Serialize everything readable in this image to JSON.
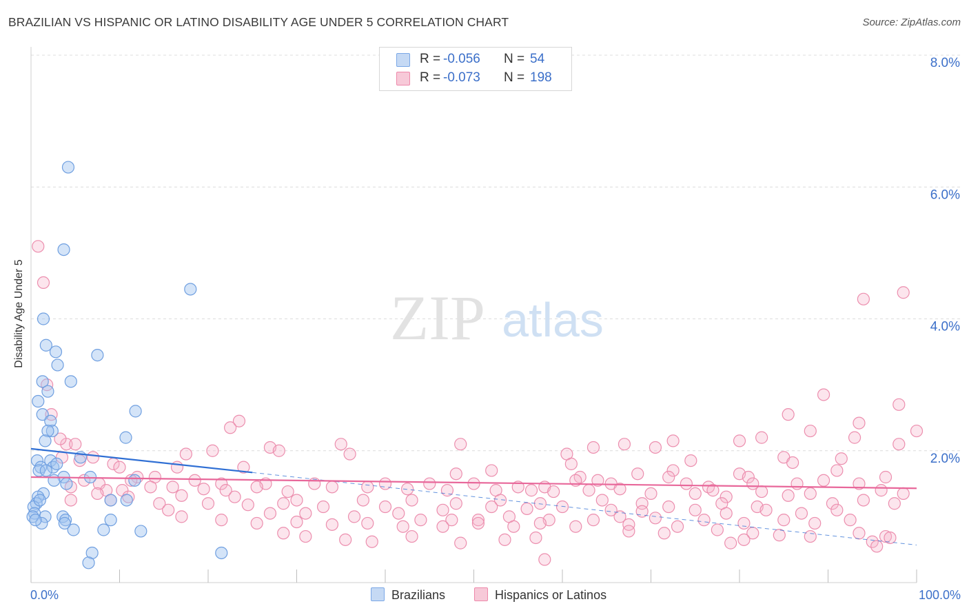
{
  "title": "BRAZILIAN VS HISPANIC OR LATINO DISABILITY AGE UNDER 5 CORRELATION CHART",
  "source": "Source: ZipAtlas.com",
  "watermark": {
    "zip": "ZIP",
    "atlas": "atlas"
  },
  "colors": {
    "blue": "#7aa7e6",
    "blue_fill": "#c5d9f4",
    "pink": "#ee88aa",
    "pink_fill": "#f7c9d8",
    "blue_line": "#2f6fd4",
    "pink_line": "#e8679a",
    "value_text": "#3b6fc9"
  },
  "legend": {
    "rows": [
      {
        "r_label": "R =",
        "r_value": "-0.056",
        "n_label": "N =",
        "n_value": "54"
      },
      {
        "r_label": "R =",
        "r_value": "-0.073",
        "n_label": "N =",
        "n_value": "198"
      }
    ]
  },
  "bottom_legend": {
    "series1": "Brazilians",
    "series2": "Hispanics or Latinos"
  },
  "chart_data": {
    "type": "scatter",
    "title": "BRAZILIAN VS HISPANIC OR LATINO DISABILITY AGE UNDER 5 CORRELATION CHART",
    "xlabel": "",
    "ylabel": "Disability Age Under 5",
    "xlim": [
      0,
      100
    ],
    "ylim": [
      0,
      8.0
    ],
    "x_tick_labels": [
      "0.0%",
      "100.0%"
    ],
    "y_ticks": [
      2.0,
      4.0,
      6.0,
      8.0
    ],
    "y_tick_labels": [
      "2.0%",
      "4.0%",
      "6.0%",
      "8.0%"
    ],
    "grid": true,
    "legend_position": "top-center",
    "series": [
      {
        "name": "Brazilians",
        "r": -0.056,
        "n": 54,
        "trend": {
          "x": [
            0,
            25,
            100
          ],
          "y": [
            2.03,
            1.67,
            0.57
          ]
        },
        "points": [
          [
            4.2,
            6.3
          ],
          [
            3.7,
            5.05
          ],
          [
            18,
            4.45
          ],
          [
            1.4,
            4.0
          ],
          [
            1.7,
            3.6
          ],
          [
            2.8,
            3.5
          ],
          [
            7.5,
            3.45
          ],
          [
            3.0,
            3.3
          ],
          [
            4.5,
            3.05
          ],
          [
            1.3,
            3.05
          ],
          [
            1.9,
            2.9
          ],
          [
            0.8,
            2.75
          ],
          [
            11.8,
            2.6
          ],
          [
            1.3,
            2.55
          ],
          [
            2.2,
            2.45
          ],
          [
            2.4,
            2.3
          ],
          [
            1.9,
            2.3
          ],
          [
            10.7,
            2.2
          ],
          [
            1.6,
            2.15
          ],
          [
            5.6,
            1.9
          ],
          [
            0.7,
            1.85
          ],
          [
            2.2,
            1.85
          ],
          [
            1.1,
            1.75
          ],
          [
            2.5,
            1.75
          ],
          [
            2.9,
            1.8
          ],
          [
            0.9,
            1.7
          ],
          [
            1.7,
            1.7
          ],
          [
            3.7,
            1.6
          ],
          [
            2.6,
            1.55
          ],
          [
            6.7,
            1.6
          ],
          [
            11.7,
            1.55
          ],
          [
            4.0,
            1.5
          ],
          [
            1.4,
            1.35
          ],
          [
            0.8,
            1.3
          ],
          [
            9.0,
            1.25
          ],
          [
            10.8,
            1.25
          ],
          [
            0.6,
            1.2
          ],
          [
            0.3,
            1.15
          ],
          [
            0.4,
            1.05
          ],
          [
            0.2,
            1.0
          ],
          [
            1.6,
            1.0
          ],
          [
            3.6,
            1.0
          ],
          [
            3.9,
            0.95
          ],
          [
            9.0,
            0.95
          ],
          [
            1.2,
            0.9
          ],
          [
            3.8,
            0.9
          ],
          [
            4.8,
            0.8
          ],
          [
            8.2,
            0.8
          ],
          [
            12.4,
            0.78
          ],
          [
            6.9,
            0.45
          ],
          [
            21.5,
            0.45
          ],
          [
            6.5,
            0.3
          ],
          [
            1.0,
            1.25
          ],
          [
            0.5,
            0.95
          ]
        ]
      },
      {
        "name": "Hispanics or Latinos",
        "r": -0.073,
        "n": 198,
        "trend": {
          "x": [
            0,
            100
          ],
          "y": [
            1.6,
            1.43
          ]
        },
        "points": [
          [
            0.8,
            5.1
          ],
          [
            1.4,
            4.55
          ],
          [
            94,
            4.3
          ],
          [
            98.5,
            4.4
          ],
          [
            1.8,
            3.0
          ],
          [
            89.5,
            2.85
          ],
          [
            98,
            2.7
          ],
          [
            2.3,
            2.55
          ],
          [
            23.5,
            2.45
          ],
          [
            85.5,
            2.55
          ],
          [
            93.5,
            2.42
          ],
          [
            100,
            2.3
          ],
          [
            22.5,
            2.35
          ],
          [
            4.0,
            2.1
          ],
          [
            5.0,
            2.1
          ],
          [
            3.3,
            2.18
          ],
          [
            27,
            2.05
          ],
          [
            35,
            2.1
          ],
          [
            48.5,
            2.1
          ],
          [
            80,
            2.15
          ],
          [
            82.5,
            2.2
          ],
          [
            88,
            2.3
          ],
          [
            93,
            2.2
          ],
          [
            98,
            2.1
          ],
          [
            67,
            2.1
          ],
          [
            70.5,
            2.05
          ],
          [
            72.5,
            2.15
          ],
          [
            63.5,
            2.05
          ],
          [
            28,
            2.0
          ],
          [
            20.5,
            2.0
          ],
          [
            36,
            1.95
          ],
          [
            60.5,
            1.95
          ],
          [
            17.5,
            1.95
          ],
          [
            7.0,
            1.9
          ],
          [
            85,
            1.9
          ],
          [
            3.5,
            1.9
          ],
          [
            5.5,
            1.85
          ],
          [
            91.5,
            1.88
          ],
          [
            86,
            1.82
          ],
          [
            9.3,
            1.8
          ],
          [
            61,
            1.8
          ],
          [
            74.5,
            1.85
          ],
          [
            10,
            1.75
          ],
          [
            16.5,
            1.75
          ],
          [
            24,
            1.75
          ],
          [
            52,
            1.7
          ],
          [
            72.5,
            1.7
          ],
          [
            80,
            1.65
          ],
          [
            91,
            1.7
          ],
          [
            72,
            1.6
          ],
          [
            81,
            1.6
          ],
          [
            62,
            1.6
          ],
          [
            64,
            1.55
          ],
          [
            68.5,
            1.65
          ],
          [
            48,
            1.65
          ],
          [
            12,
            1.6
          ],
          [
            14,
            1.6
          ],
          [
            6.0,
            1.55
          ],
          [
            11.3,
            1.55
          ],
          [
            7.7,
            1.5
          ],
          [
            18.5,
            1.55
          ],
          [
            21.5,
            1.5
          ],
          [
            26.5,
            1.5
          ],
          [
            32,
            1.5
          ],
          [
            40,
            1.5
          ],
          [
            45,
            1.5
          ],
          [
            50,
            1.5
          ],
          [
            55,
            1.45
          ],
          [
            58,
            1.45
          ],
          [
            61.5,
            1.55
          ],
          [
            65.5,
            1.5
          ],
          [
            74,
            1.5
          ],
          [
            76.5,
            1.45
          ],
          [
            81.5,
            1.5
          ],
          [
            86.5,
            1.5
          ],
          [
            89.5,
            1.55
          ],
          [
            93.5,
            1.5
          ],
          [
            96.5,
            1.6
          ],
          [
            96,
            1.4
          ],
          [
            98.5,
            1.35
          ],
          [
            4.5,
            1.45
          ],
          [
            8.5,
            1.4
          ],
          [
            10.3,
            1.4
          ],
          [
            13.5,
            1.45
          ],
          [
            16,
            1.45
          ],
          [
            19.5,
            1.42
          ],
          [
            22,
            1.4
          ],
          [
            25.5,
            1.45
          ],
          [
            29,
            1.38
          ],
          [
            34,
            1.45
          ],
          [
            38,
            1.45
          ],
          [
            42.5,
            1.42
          ],
          [
            47,
            1.4
          ],
          [
            52.5,
            1.4
          ],
          [
            56.5,
            1.4
          ],
          [
            59,
            1.38
          ],
          [
            63,
            1.4
          ],
          [
            66.5,
            1.42
          ],
          [
            70,
            1.35
          ],
          [
            75,
            1.35
          ],
          [
            77,
            1.4
          ],
          [
            78.5,
            1.3
          ],
          [
            82.5,
            1.38
          ],
          [
            85.5,
            1.32
          ],
          [
            88,
            1.35
          ],
          [
            7.5,
            1.35
          ],
          [
            11,
            1.3
          ],
          [
            17,
            1.32
          ],
          [
            23,
            1.3
          ],
          [
            30,
            1.25
          ],
          [
            37.5,
            1.25
          ],
          [
            43,
            1.25
          ],
          [
            48,
            1.2
          ],
          [
            53,
            1.25
          ],
          [
            57.5,
            1.2
          ],
          [
            64.5,
            1.25
          ],
          [
            69,
            1.2
          ],
          [
            72,
            1.15
          ],
          [
            78,
            1.2
          ],
          [
            82,
            1.15
          ],
          [
            90.5,
            1.2
          ],
          [
            94,
            1.25
          ],
          [
            4.5,
            1.25
          ],
          [
            9,
            1.25
          ],
          [
            14.5,
            1.2
          ],
          [
            20,
            1.2
          ],
          [
            24.5,
            1.18
          ],
          [
            28.5,
            1.2
          ],
          [
            33,
            1.15
          ],
          [
            40,
            1.15
          ],
          [
            46.5,
            1.1
          ],
          [
            52,
            1.15
          ],
          [
            56,
            1.12
          ],
          [
            60,
            1.15
          ],
          [
            65.5,
            1.1
          ],
          [
            69,
            1.08
          ],
          [
            75,
            1.1
          ],
          [
            78.5,
            1.05
          ],
          [
            83,
            1.1
          ],
          [
            87,
            1.05
          ],
          [
            91,
            1.1
          ],
          [
            97.5,
            1.2
          ],
          [
            15.5,
            1.1
          ],
          [
            27,
            1.05
          ],
          [
            31,
            1.05
          ],
          [
            36.5,
            1.0
          ],
          [
            41.5,
            1.05
          ],
          [
            44,
            0.95
          ],
          [
            47.5,
            0.95
          ],
          [
            50.5,
            0.95
          ],
          [
            54,
            1.0
          ],
          [
            58.5,
            0.95
          ],
          [
            63.5,
            0.95
          ],
          [
            66.5,
            1.0
          ],
          [
            70.5,
            0.98
          ],
          [
            76,
            0.95
          ],
          [
            80.5,
            0.9
          ],
          [
            85,
            0.95
          ],
          [
            88.5,
            0.9
          ],
          [
            92.5,
            0.95
          ],
          [
            17,
            1.0
          ],
          [
            21.5,
            0.95
          ],
          [
            25.5,
            0.9
          ],
          [
            30,
            0.92
          ],
          [
            34,
            0.88
          ],
          [
            38,
            0.9
          ],
          [
            42,
            0.85
          ],
          [
            46.5,
            0.85
          ],
          [
            50.5,
            0.9
          ],
          [
            54.5,
            0.85
          ],
          [
            57.5,
            0.9
          ],
          [
            61.5,
            0.85
          ],
          [
            67.5,
            0.88
          ],
          [
            73,
            0.85
          ],
          [
            77.5,
            0.8
          ],
          [
            81.5,
            0.75
          ],
          [
            84.5,
            0.72
          ],
          [
            88,
            0.7
          ],
          [
            93.5,
            0.75
          ],
          [
            96.5,
            0.7
          ],
          [
            28.5,
            0.75
          ],
          [
            31,
            0.7
          ],
          [
            35.5,
            0.65
          ],
          [
            38.5,
            0.62
          ],
          [
            43,
            0.7
          ],
          [
            48.5,
            0.6
          ],
          [
            53.5,
            0.65
          ],
          [
            57,
            0.68
          ],
          [
            67.5,
            0.78
          ],
          [
            71.5,
            0.75
          ],
          [
            79,
            0.6
          ],
          [
            80.5,
            0.65
          ],
          [
            95,
            0.62
          ],
          [
            95.5,
            0.55
          ],
          [
            97,
            0.68
          ],
          [
            58,
            0.35
          ]
        ]
      }
    ]
  }
}
